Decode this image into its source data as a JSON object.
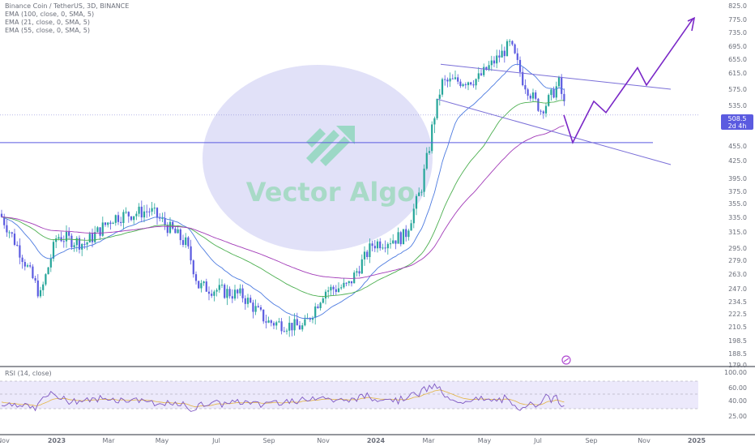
{
  "header": {
    "symbol_line": "Binance Coin / TetherUS, 3D, BINANCE",
    "indicators": [
      "EMA (100, close, 0, SMA, 5)",
      "EMA (21, close, 0, SMA, 5)",
      "EMA (55, close, 0, SMA, 5)"
    ]
  },
  "rsi_label": "RSI (14, close)",
  "watermark": "Vector Algo",
  "current_price": {
    "value": "508.5",
    "countdown": "2d 4h"
  },
  "colors": {
    "up": "#26a69a",
    "down": "#5b5be0",
    "ema100": "#a23bb8",
    "ema21": "#4d7be0",
    "ema55": "#4caf50",
    "projection": "#7a28c7",
    "rsi": "#7e57c2",
    "rsi_ma": "#e3b341"
  },
  "chart_data": {
    "type": "candlestick",
    "price_axis_labels": [
      "825.0",
      "775.0",
      "735.0",
      "695.0",
      "655.0",
      "615.0",
      "575.0",
      "535.0",
      "495.0",
      "455.0",
      "425.0",
      "395.0",
      "375.0",
      "355.0",
      "335.0",
      "315.0",
      "295.0",
      "279.0",
      "263.0",
      "247.0",
      "234.5",
      "222.5",
      "210.5",
      "198.5",
      "188.5",
      "179.0"
    ],
    "time_axis_labels": [
      "Nov",
      "2023",
      "Mar",
      "May",
      "Jul",
      "Sep",
      "Nov",
      "2024",
      "Mar",
      "May",
      "Jul",
      "Sep",
      "Nov",
      "2025"
    ],
    "rsi_axis_labels": [
      "100.00",
      "60.00",
      "40.00",
      "25.00"
    ],
    "scale": "log",
    "ohlc_key_points": [
      {
        "label": "start",
        "price": 340
      },
      {
        "label": "Nov 2022 low",
        "price": 225
      },
      {
        "label": "Feb 2023 high",
        "price": 335
      },
      {
        "label": "Apr 2023 high",
        "price": 345
      },
      {
        "label": "Jun 2023 drop",
        "price": 240
      },
      {
        "label": "Sep-Oct 2023 low",
        "price": 205
      },
      {
        "label": "Dec 2023",
        "price": 300
      },
      {
        "label": "Mar 2024 high",
        "price": 640
      },
      {
        "label": "Jun 2024 spike",
        "price": 720
      },
      {
        "label": "Jul 2024 low",
        "price": 460
      },
      {
        "label": "last",
        "price": 508.5
      }
    ],
    "horizontal_line": 508.5,
    "support_line": 460,
    "projection_path": [
      460,
      545,
      515,
      630,
      585,
      780
    ]
  }
}
